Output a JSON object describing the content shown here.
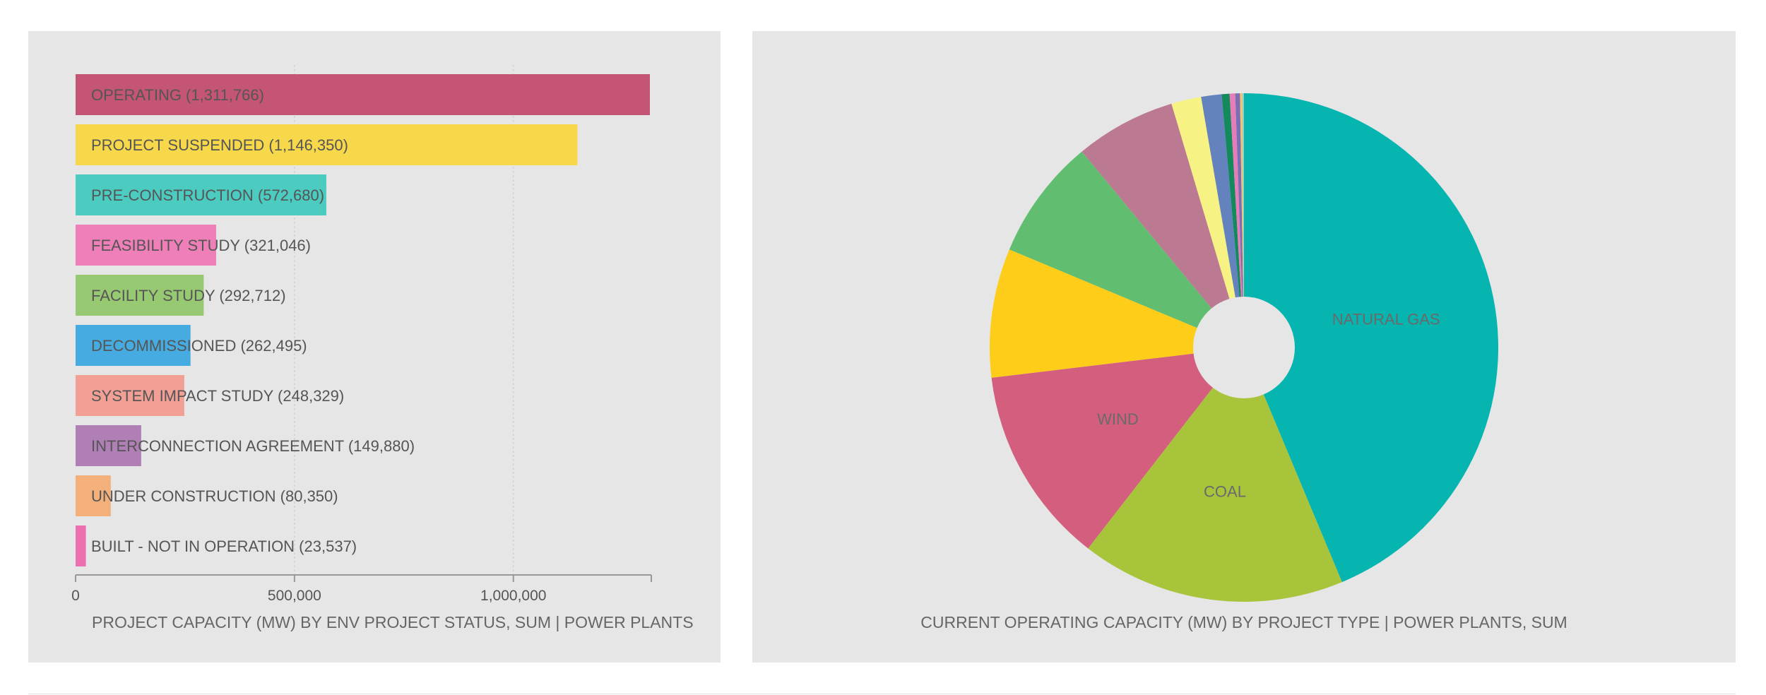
{
  "chart_data": [
    {
      "type": "bar",
      "orientation": "horizontal",
      "title": "PROJECT CAPACITY (MW) BY ENV PROJECT STATUS, SUM | POWER PLANTS",
      "categories": [
        "OPERATING",
        "PROJECT SUSPENDED",
        "PRE-CONSTRUCTION",
        "FEASIBILITY STUDY",
        "FACILITY STUDY",
        "DECOMMISSIONED",
        "SYSTEM IMPACT STUDY",
        "INTERCONNECTION AGREEMENT",
        "UNDER CONSTRUCTION",
        "BUILT - NOT IN OPERATION"
      ],
      "values": [
        1311766,
        1146350,
        572680,
        321046,
        292712,
        262495,
        248329,
        149880,
        80350,
        23537
      ],
      "bar_labels": [
        "OPERATING (1,311,766)",
        "PROJECT SUSPENDED (1,146,350)",
        "PRE-CONSTRUCTION (572,680)",
        "FEASIBILITY STUDY (321,046)",
        "FACILITY STUDY (292,712)",
        "DECOMMISSIONED (262,495)",
        "SYSTEM IMPACT STUDY (248,329)",
        "INTERCONNECTION AGREEMENT (149,880)",
        "UNDER CONSTRUCTION (80,350)",
        "BUILT - NOT IN OPERATION (23,537)"
      ],
      "colors": [
        "#c45574",
        "#f7d84a",
        "#4ccbc1",
        "#ef7fb8",
        "#97c872",
        "#45abe0",
        "#f2a096",
        "#b07fb5",
        "#f3b07a",
        "#ec6fb0"
      ],
      "xlim": [
        0,
        1311766
      ],
      "xticks": [
        0,
        500000,
        1000000
      ],
      "xtick_labels": [
        "0",
        "500,000",
        "1,000,000"
      ],
      "grid": "vertical-dotted",
      "legend": "none"
    },
    {
      "type": "pie",
      "donut": true,
      "title": "CURRENT OPERATING CAPACITY (MW) BY PROJECT TYPE | POWER PLANTS, SUM",
      "slices": [
        {
          "label": "NATURAL GAS",
          "value": 43.7,
          "color": "#07b5b0",
          "show_label": true
        },
        {
          "label": "COAL",
          "value": 16.8,
          "color": "#a8c43a",
          "show_label": true
        },
        {
          "label": "WIND",
          "value": 12.6,
          "color": "#d45e7e",
          "show_label": true
        },
        {
          "label": "",
          "value": 8.2,
          "color": "#fdcd1a",
          "show_label": false
        },
        {
          "label": "",
          "value": 7.7,
          "color": "#61bd6f",
          "show_label": false
        },
        {
          "label": "",
          "value": 6.4,
          "color": "#bb7a92",
          "show_label": false
        },
        {
          "label": "",
          "value": 1.9,
          "color": "#f6f384",
          "show_label": false
        },
        {
          "label": "",
          "value": 1.3,
          "color": "#6482bd",
          "show_label": false
        },
        {
          "label": "",
          "value": 0.5,
          "color": "#128a5c",
          "show_label": false
        },
        {
          "label": "",
          "value": 0.35,
          "color": "#e77db8",
          "show_label": false
        },
        {
          "label": "",
          "value": 0.3,
          "color": "#7a6fb5",
          "show_label": false
        },
        {
          "label": "",
          "value": 0.15,
          "color": "#f7c26b",
          "show_label": false
        },
        {
          "label": "",
          "value": 0.1,
          "color": "#8fd0ca",
          "show_label": false
        }
      ],
      "legend": "none"
    }
  ]
}
